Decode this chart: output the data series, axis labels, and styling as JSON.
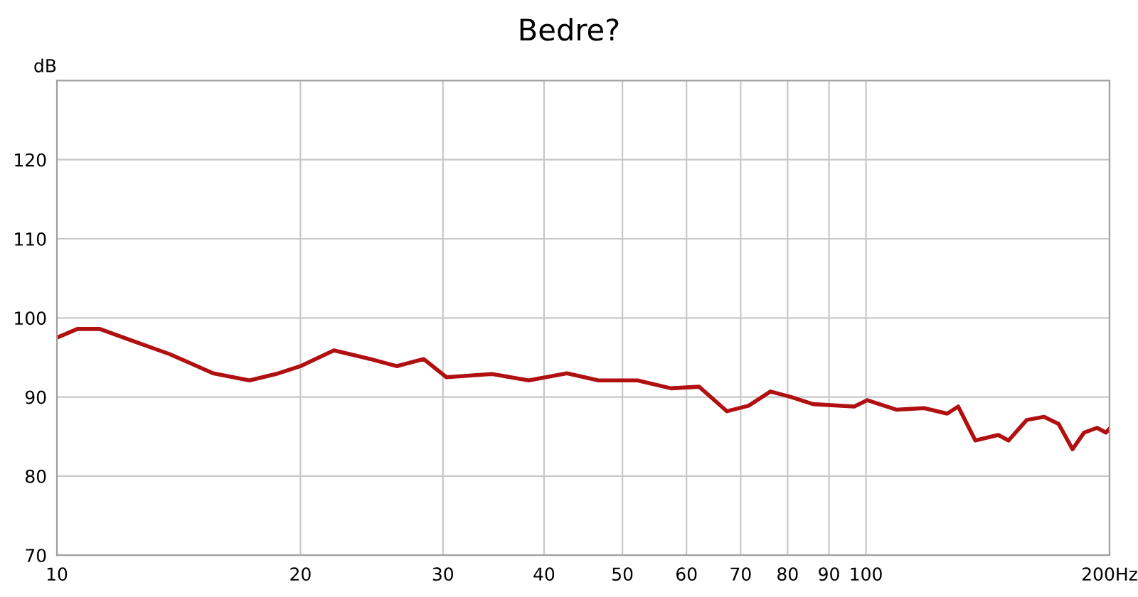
{
  "chart_data": {
    "type": "line",
    "title": "Bedre?",
    "ylabel": "dB",
    "log": "x",
    "xlim": [
      10,
      200
    ],
    "xticks": [
      10,
      20,
      30,
      40,
      50,
      60,
      70,
      80,
      90,
      100,
      {
        "value": 200,
        "label": "200Hz"
      }
    ],
    "ylim": [
      70,
      130
    ],
    "yticks": [
      70,
      80,
      90,
      100,
      110,
      120
    ],
    "grid": true,
    "marker": "none",
    "line_style": "solid",
    "series": [
      {
        "color": "#b01010",
        "x": [
          10,
          10.6,
          11.3,
          12.25,
          13.8,
          15.6,
          17.3,
          18.8,
          20,
          22,
          24.4,
          26.3,
          28.4,
          30.3,
          34.5,
          38.3,
          42.7,
          46.7,
          52.2,
          57.4,
          62.2,
          67.3,
          71.6,
          76.2,
          80.8,
          86,
          96.7,
          100.4,
          109,
          118,
          126,
          130,
          136.5,
          145.7,
          150,
          158,
          166,
          173,
          180,
          186,
          193,
          198,
          200
        ],
        "values": [
          97.5,
          98.6,
          98.6,
          97.3,
          95.4,
          93.0,
          92.1,
          93.0,
          93.9,
          95.9,
          94.8,
          93.9,
          94.8,
          92.5,
          92.9,
          92.1,
          93.0,
          92.1,
          92.1,
          91.1,
          91.3,
          88.2,
          88.9,
          90.7,
          90.0,
          89.1,
          88.8,
          89.6,
          88.4,
          88.6,
          87.9,
          88.8,
          84.5,
          85.2,
          84.5,
          87.1,
          87.5,
          86.6,
          83.4,
          85.5,
          86.1,
          85.5,
          86.0
        ]
      }
    ]
  }
}
